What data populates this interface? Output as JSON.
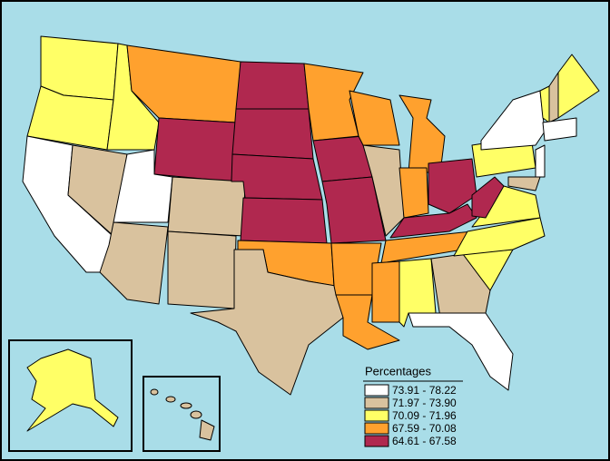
{
  "legend": {
    "title": "Percentages",
    "items": [
      {
        "label": "73.91 - 78.22",
        "color": "#ffffff"
      },
      {
        "label": "71.97 - 73.90",
        "color": "#d9c29e"
      },
      {
        "label": "70.09 - 71.96",
        "color": "#ffff66"
      },
      {
        "label": "67.59 - 70.08",
        "color": "#ffa12e"
      },
      {
        "label": "64.61 - 67.58",
        "color": "#b0284f"
      }
    ]
  }
}
